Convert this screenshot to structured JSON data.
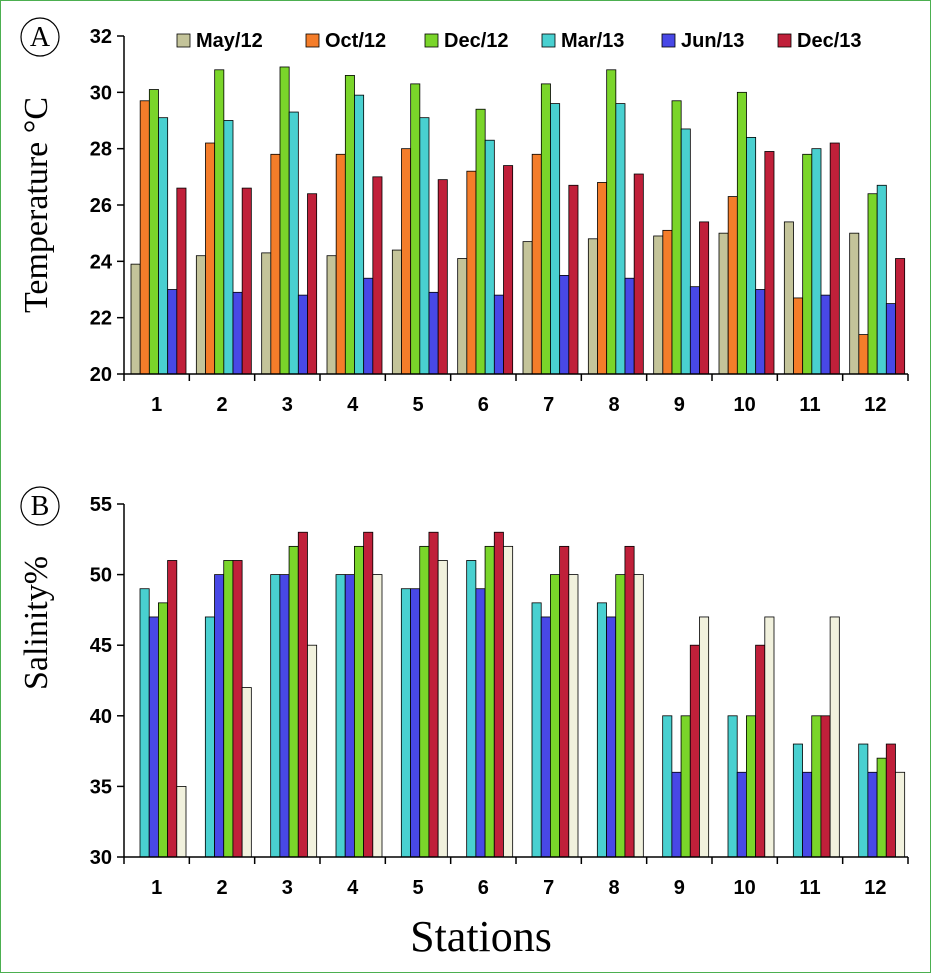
{
  "chart_data": [
    {
      "panel": "A",
      "type": "bar",
      "ylabel": "Temperature °C",
      "xlabel": "",
      "ylim": [
        20,
        32
      ],
      "yticks": [
        "20",
        "22",
        "24",
        "26",
        "28",
        "30",
        "32"
      ],
      "categories": [
        "1",
        "2",
        "3",
        "4",
        "5",
        "6",
        "7",
        "8",
        "9",
        "10",
        "11",
        "12"
      ],
      "legend_position": "top",
      "series": [
        {
          "name": "May/12",
          "color": "#c4c49a",
          "values": [
            23.9,
            24.2,
            24.3,
            24.2,
            24.4,
            24.1,
            24.7,
            24.8,
            24.9,
            25.0,
            25.4,
            25.0
          ]
        },
        {
          "name": "Oct/12",
          "color": "#f47d2a",
          "values": [
            29.7,
            28.2,
            27.8,
            27.8,
            28.0,
            27.2,
            27.8,
            26.8,
            25.1,
            26.3,
            22.7,
            21.4
          ]
        },
        {
          "name": "Dec/12",
          "color": "#7ad52a",
          "values": [
            30.1,
            30.8,
            30.9,
            30.6,
            30.3,
            29.4,
            30.3,
            30.8,
            29.7,
            30.0,
            27.8,
            26.4
          ]
        },
        {
          "name": "Mar/13",
          "color": "#49d0d0",
          "values": [
            29.1,
            29.0,
            29.3,
            29.9,
            29.1,
            28.3,
            29.6,
            29.6,
            28.7,
            28.4,
            28.0,
            26.7
          ]
        },
        {
          "name": "Jun/13",
          "color": "#4848e6",
          "values": [
            23.0,
            22.9,
            22.8,
            23.4,
            22.9,
            22.8,
            23.5,
            23.4,
            23.1,
            23.0,
            22.8,
            22.5
          ]
        },
        {
          "name": "Dec/13",
          "color": "#c0203a",
          "values": [
            26.6,
            26.6,
            26.4,
            27.0,
            26.9,
            27.4,
            26.7,
            27.1,
            25.4,
            27.9,
            28.2,
            24.1
          ]
        }
      ]
    },
    {
      "panel": "B",
      "type": "bar",
      "ylabel": "Salinity%",
      "xlabel": "Stations",
      "ylim": [
        30,
        55
      ],
      "yticks": [
        "30",
        "35",
        "40",
        "45",
        "50",
        "55"
      ],
      "categories": [
        "1",
        "2",
        "3",
        "4",
        "5",
        "6",
        "7",
        "8",
        "9",
        "10",
        "11",
        "12"
      ],
      "series": [
        {
          "color": "#49d0d0",
          "values": [
            49,
            47,
            50,
            50,
            49,
            51,
            48,
            48,
            40,
            40,
            38,
            38
          ]
        },
        {
          "color": "#4848e6",
          "values": [
            47,
            50,
            50,
            50,
            49,
            49,
            47,
            47,
            36,
            36,
            36,
            36
          ]
        },
        {
          "color": "#7ad52a",
          "values": [
            48,
            51,
            52,
            52,
            52,
            52,
            50,
            50,
            40,
            40,
            40,
            37
          ]
        },
        {
          "color": "#c0203a",
          "values": [
            51,
            51,
            53,
            53,
            53,
            53,
            52,
            52,
            45,
            45,
            40,
            38
          ]
        },
        {
          "color": "#f1f1dd",
          "values": [
            35,
            42,
            45,
            50,
            51,
            52,
            50,
            50,
            47,
            47,
            47,
            36
          ]
        }
      ]
    }
  ]
}
